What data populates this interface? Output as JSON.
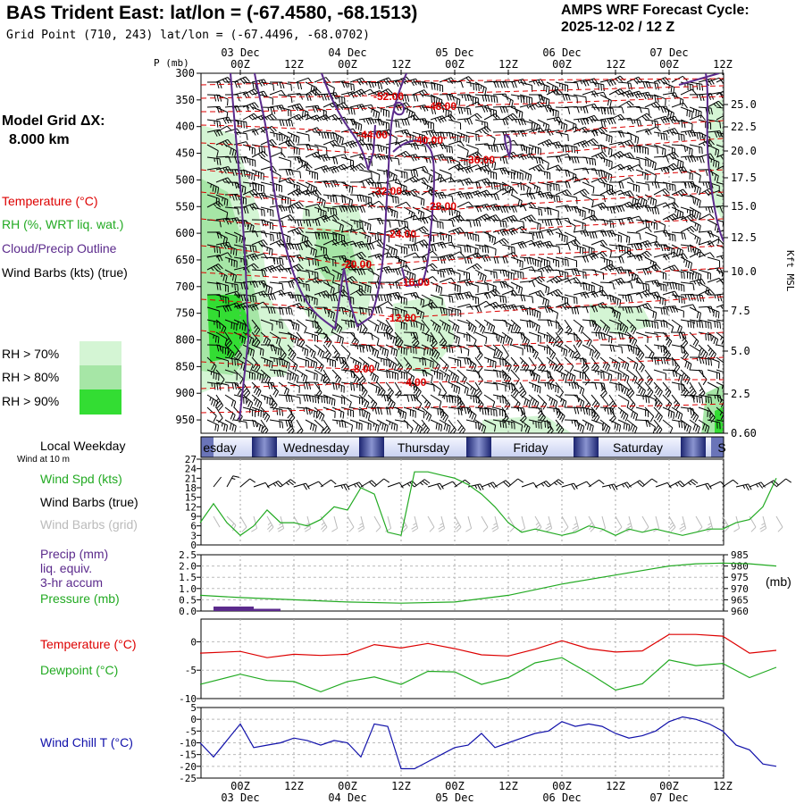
{
  "header": {
    "station_title": "BAS Trident East:  lat/lon = (-67.4580, -68.1513)",
    "grid_point": "Grid Point (710, 243) lat/lon = (-67.4496, -68.0702)",
    "forecast_label": "AMPS WRF Forecast Cycle:",
    "forecast_cycle": "2025-12-02 / 12  Z"
  },
  "left_labels": {
    "model_grid": "Model Grid ΔX:",
    "model_grid_value": "8.000 km",
    "temperature": "Temperature (°C)",
    "rh": "RH (%, WRT liq. wat.)",
    "cloud": "Cloud/Precip Outline",
    "wind_barbs": "Wind Barbs (kts) (true)",
    "rh70": "RH > 70%",
    "rh80": "RH > 80%",
    "rh90": "RH > 90%",
    "local_weekday": "Local Weekday",
    "wind_at": "Wind at 10 m",
    "wind_spd": "Wind Spd (kts)",
    "wind_barbs_true": "Wind Barbs (true)",
    "wind_barbs_grid": "Wind Barbs (grid)",
    "precip": "Precip (mm)",
    "precip2": "liq. equiv.",
    "precip3": "3-hr accum",
    "pressure": "Pressure (mb)",
    "temperature2": "Temperature (°C)",
    "dewpoint": "Dewpoint (°C)",
    "wind_chill": "Wind Chill T (°C)",
    "mb_unit": "(mb)",
    "kft_msl": "Kft MSL",
    "p_mb": "P (mb)"
  },
  "colors": {
    "temp": "#dd0000",
    "rh": "#22aa22",
    "cloud": "#5b2a8c",
    "rh70": "#d4f5d4",
    "rh80": "#a6e6a6",
    "rh90": "#33dd33",
    "windchill": "#1111aa",
    "grid_barbs": "#bbbbbb"
  },
  "chart_data": [
    {
      "type": "cross-section",
      "time_axis_top": {
        "ticks": [
          "00Z",
          "12Z",
          "00Z",
          "12Z",
          "00Z",
          "12Z",
          "00Z",
          "12Z",
          "00Z",
          "12Z"
        ],
        "dates": [
          "03 Dec",
          "04 Dec",
          "05 Dec",
          "06 Dec",
          "07 Dec"
        ]
      },
      "pressure_levels": [
        "300",
        "350",
        "400",
        "450",
        "500",
        "550",
        "600",
        "650",
        "700",
        "750",
        "800",
        "850",
        "900",
        "950"
      ],
      "kft_levels": [
        "25.0",
        "22.5",
        "20.0",
        "17.5",
        "15.0",
        "12.5",
        "10.0",
        "7.5",
        "5.0",
        "2.5",
        "0.60"
      ],
      "isotherm_labels": [
        "-52.00",
        "-48.00",
        "-44.00",
        "-40.00",
        "-36.00",
        "-32.00",
        "-28.00",
        "-24.00",
        "-20.00",
        "-16.00",
        "-12.00",
        "-8.00",
        "-4.00"
      ]
    },
    {
      "type": "bar",
      "weekdays": [
        "esday",
        "Wednesday",
        "Thursday",
        "Friday",
        "Saturday",
        "S"
      ]
    },
    {
      "type": "line",
      "title": "Wind Spd (kts)",
      "ylim": [
        0,
        27
      ],
      "yticks": [
        "27",
        "24",
        "21",
        "18",
        "15",
        "12",
        "9",
        "6",
        "3",
        "0"
      ],
      "x_hours": [
        -9,
        -6,
        -3,
        0,
        3,
        6,
        9,
        12,
        15,
        18,
        21,
        24,
        27,
        30,
        33,
        36,
        39,
        42,
        45,
        48,
        51,
        54,
        57,
        60,
        63,
        66,
        69,
        72,
        75,
        78,
        81,
        84,
        87,
        90,
        93,
        96,
        99,
        102,
        105,
        108,
        111,
        114,
        117,
        120
      ],
      "values": [
        7,
        13,
        7,
        3,
        6,
        11,
        7,
        7,
        6,
        8,
        12,
        11,
        18,
        16,
        4,
        3,
        23,
        23,
        22,
        21,
        19,
        16,
        12,
        7,
        4,
        5,
        4,
        3,
        4,
        6,
        5,
        3,
        5,
        4,
        5,
        4,
        3,
        4,
        5,
        5,
        7,
        8,
        12,
        21
      ]
    },
    {
      "type": "line",
      "title": "Pressure (mb) / Precip (mm)",
      "precip_yticks": [
        "2.5",
        "2.0",
        "1.5",
        "1.0",
        "0.5",
        "0.0"
      ],
      "pressure_yticks": [
        "985",
        "980",
        "975",
        "970",
        "965",
        "960"
      ],
      "pressure_ylim": [
        960,
        985
      ],
      "x_hours": [
        -9,
        0,
        12,
        24,
        36,
        48,
        60,
        72,
        84,
        96,
        102,
        108,
        114,
        120
      ],
      "pressure": [
        967,
        966,
        965,
        964,
        963.5,
        964,
        967,
        972,
        976,
        980,
        981,
        981.3,
        981,
        980
      ],
      "precip": [
        {
          "x0": -6,
          "x1": 3,
          "value": 0.2
        },
        {
          "x0": 3,
          "x1": 9,
          "value": 0.1
        }
      ]
    },
    {
      "type": "line",
      "title": "Temperature / Dewpoint (°C)",
      "ylim": [
        -10,
        4
      ],
      "yticks": [
        "0",
        "-5",
        "-10"
      ],
      "x_hours": [
        -9,
        0,
        6,
        12,
        18,
        24,
        30,
        36,
        42,
        48,
        54,
        60,
        66,
        72,
        78,
        84,
        90,
        96,
        102,
        108,
        114,
        120
      ],
      "temperature": [
        -2,
        -1.7,
        -2.8,
        -2.2,
        -2.4,
        -2.2,
        -0.5,
        -1.1,
        -0.3,
        -1.2,
        -2.3,
        -2.5,
        -1.3,
        0.2,
        -1.2,
        -1.8,
        -1.6,
        1.3,
        1.3,
        1.0,
        -2.0,
        -1.5
      ],
      "dewpoint": [
        -7.5,
        -5.7,
        -6.8,
        -7.0,
        -8.8,
        -7.0,
        -6.2,
        -7.5,
        -5.2,
        -5.3,
        -7.5,
        -6.3,
        -3.7,
        -2.8,
        -5.5,
        -8.5,
        -7.4,
        -3.2,
        -4.2,
        -3.8,
        -6.3,
        -4.5
      ]
    },
    {
      "type": "line",
      "title": "Wind Chill T (°C)",
      "ylim": [
        -25,
        5
      ],
      "yticks": [
        "5",
        "0",
        "-5",
        "-10",
        "-15",
        "-20",
        "-25"
      ],
      "x_hours": [
        -9,
        -6,
        0,
        3,
        6,
        9,
        12,
        15,
        18,
        21,
        24,
        27,
        30,
        33,
        36,
        39,
        42,
        45,
        48,
        51,
        54,
        57,
        60,
        63,
        66,
        69,
        72,
        75,
        78,
        81,
        84,
        87,
        90,
        93,
        96,
        99,
        102,
        105,
        108,
        111,
        114,
        117,
        120
      ],
      "values": [
        -10,
        -16,
        -2,
        -12,
        -11,
        -10,
        -8,
        -9,
        -11,
        -9,
        -10,
        -16,
        -2,
        -3,
        -21,
        -21,
        -18,
        -15,
        -12,
        -11,
        -6,
        -12,
        -10,
        -8,
        -6,
        -5,
        -1,
        -3,
        -2,
        -3,
        -6,
        -8,
        -7,
        -5,
        -1,
        1,
        0,
        -2,
        -5,
        -11,
        -13,
        -19,
        -20
      ]
    },
    {
      "type": "axis",
      "time_axis_bottom": {
        "ticks": [
          "00Z",
          "12Z",
          "00Z",
          "12Z",
          "00Z",
          "12Z",
          "00Z",
          "12Z",
          "00Z",
          "12Z"
        ],
        "dates": [
          "03 Dec",
          "04 Dec",
          "05 Dec",
          "06 Dec",
          "07 Dec"
        ]
      }
    }
  ]
}
